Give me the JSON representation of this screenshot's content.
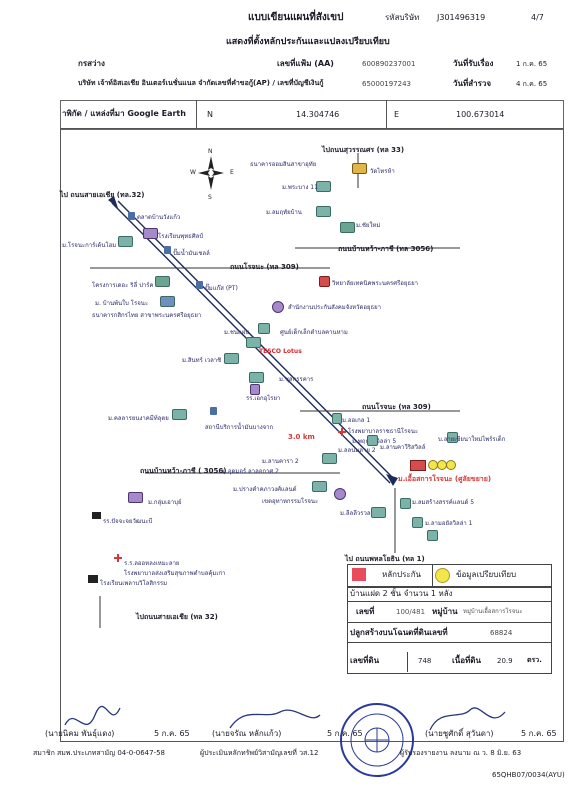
{
  "header": {
    "title": "แบบเขียนแผนที่สังเขป",
    "company_code_label": "รหัสบริษัท",
    "company_code": "J301496319",
    "page": "4/7",
    "subtitle": "แสดงที่ตั้งหลักประกันและแปลงเปรียบเทียบ",
    "branch_label": "กรสว่าง",
    "file_no_label": "เลขที่แฟ้ม (AA)",
    "file_no": "600890237001",
    "received_label": "วันที่รับเรื่อง",
    "received_date": "1 ก.ค. 65",
    "company_name": "บริษัท เจ้าท์อิสเอเชีย อินเตอร์เนชั่นแนล จำกัดเลขที่คำขอกู้(AP) / เลขที่บัญชีเงินกู้",
    "loan_no": "65000197243",
    "survey_label": "วันที่สำรวจ",
    "survey_date": "4 ก.ค. 65"
  },
  "coords": {
    "label": "าพิกัด / แหล่งที่มา Google Earth",
    "n_label": "N",
    "n_value": "14.304746",
    "e_label": "E",
    "e_value": "100.673014"
  },
  "map": {
    "roads": {
      "top_right": "ไปถนนสุวรรณศร (ทล 33)",
      "top_left": "ไป ถนนสายเอเชีย (ทล.32)",
      "r3056_top": "ถนนบ้านหว้า-ภาชี (ทล 3056)",
      "r309_a": "ถนนโรจนะ (ทล 309)",
      "r309_b": "ถนนโรจนะ (ทล 309)",
      "r3056_bottom": "ถนนบ้านหว้า-ภาชี ( 3056)",
      "bottom_right": "ไป ถนนพหลโยธิน (ทล 1)",
      "bottom_left": "ไปถนนสายเอเชีย (ทล 32)"
    },
    "distance": "3.0 km",
    "subject_label": "ม.เอื้อสการโรจนะ (ศูลัยขยาย)",
    "compass": {
      "n": "N",
      "s": "S",
      "e": "E",
      "w": "W"
    },
    "places": [
      "ธนาคารออมสินสาขาอุทัย",
      "วัดไทรห้า",
      "ม.พระบาง 11",
      "ม.ลมฤทัยบ้าน",
      "ม.ชัยใหม่",
      "ตลาดบ้านวังแก้ว",
      "โรงเรียนพุทธศิลป์",
      "ม.โรจนะการ์เด้นโฮม",
      "ปั๊มน้ำมันเชลล์",
      "โครงการเดอะ ริลี่ ปาร์ค",
      "ปั๊มแก๊ส (PT)",
      "วิทยาลัยเทคนิคพระนครศรีอยุธยา",
      "ม. บ้านพ้นใบ โรจนะ",
      "ธนาคารกสิกรไทย สาขาพระนครศรีอยุธยา",
      "สำนักงานประกันสังคมจังหวัดอยุธยา",
      "ม.ชนแผ่น",
      "ศูนย์เด็กเล็กตำบลคานหาม",
      "ม.สินทร์ เวลาชิ",
      "TESCO Lotus",
      "ม.ชุลกรรคาร",
      "รร.เอกอุไรยา",
      "ม.คลลารยนงาคมีท์ลุตย",
      "สถานีบริการน้ำมันบางจาก",
      "ม.ออเกล 1",
      "โรงพยาบาลราชธานีโรจนะ",
      "ม.พฤกษาวิลล่า 5",
      "ม.ลลนมลาย 2",
      "ม.ลานคาวีริสวิลล์",
      "ม.ลานคารา 2",
      "บ.ลายเซียนาใหม่ไพร์รเด็ก",
      "ม.อุดมอร์ ลาลอกาศ 2",
      "ม.ปรางคำคภาวงศ์แลนด์",
      "เขตอุทาหกรรมโรจนะ",
      "ม.ลีลลีวรวล",
      "ม.ลมสร้างสรรค์แลนด์ 5",
      "ม.ลามอยัลวิลล่า 1",
      "ม.กลุ่มเอาบุย์",
      "รร.ปัจจะจยวัฒนะบี",
      "ร.ร.ลออหลงเหมะลาย",
      "โรงพยาบาลส่งเสริมสุขภาพตำบลคุ้มเก่า",
      "โรงเรียนเจ้าหลวงปู",
      "โรงเรียนเพลาบวิโลสิกรรม",
      "ร.ร.รามคำลิมทะ",
      "ม.ร้านอพาร์ทเม้นต์"
    ]
  },
  "legend": {
    "collateral": "หลักประกัน",
    "comparable": "ข้อมูลเปรียบเทียบ",
    "colors": {
      "collateral": "#e84b5a",
      "comparable": "#f2e64a"
    }
  },
  "property": {
    "description": "บ้านแฝด 2 ชั้น จำนวน 1 หลัง",
    "house_no_label": "เลขที่",
    "house_no": "100/481",
    "village_label": "หมู่บ้าน",
    "village": "หมู่บ้านเอื้อสการโรจนะ",
    "deed_text_label": "ปลูกสร้างบนโฉนดที่ดินเลขที่",
    "deed_no": "68824",
    "land_no_label": "เลขที่ดิน",
    "land_no": "748",
    "area_label": "เนื้อที่ดิน",
    "area": "20.9",
    "area_unit": "ตรว."
  },
  "signatures": {
    "left_name": "(นายนิคม  พันธุ์แดง)",
    "left_date": "5 ก.ค. 65",
    "middle_name": "(นายจรัณ  หลักแก้ว)",
    "middle_date": "5 ก.ค. 65",
    "right_name": "(นายชูศักดิ์  สุวันดา)",
    "right_date": "5 ก.ค. 65",
    "left_cert": "สมาชิก สมพ.ประเภทสามัญ 04-0-0647-58",
    "middle_cert": "ผู้ประเมินหลักทรัพย์วิสามัญเลขที่ วส.12",
    "right_cert": "ผู้รับรองรายงาน  ลงนาม ณ ว. 8 มิ.ย. 63",
    "stamp_text": "SOUTH EAST ASIA INTERNATIONAL",
    "footer_code": "65QHB07/0034(AYU)"
  }
}
